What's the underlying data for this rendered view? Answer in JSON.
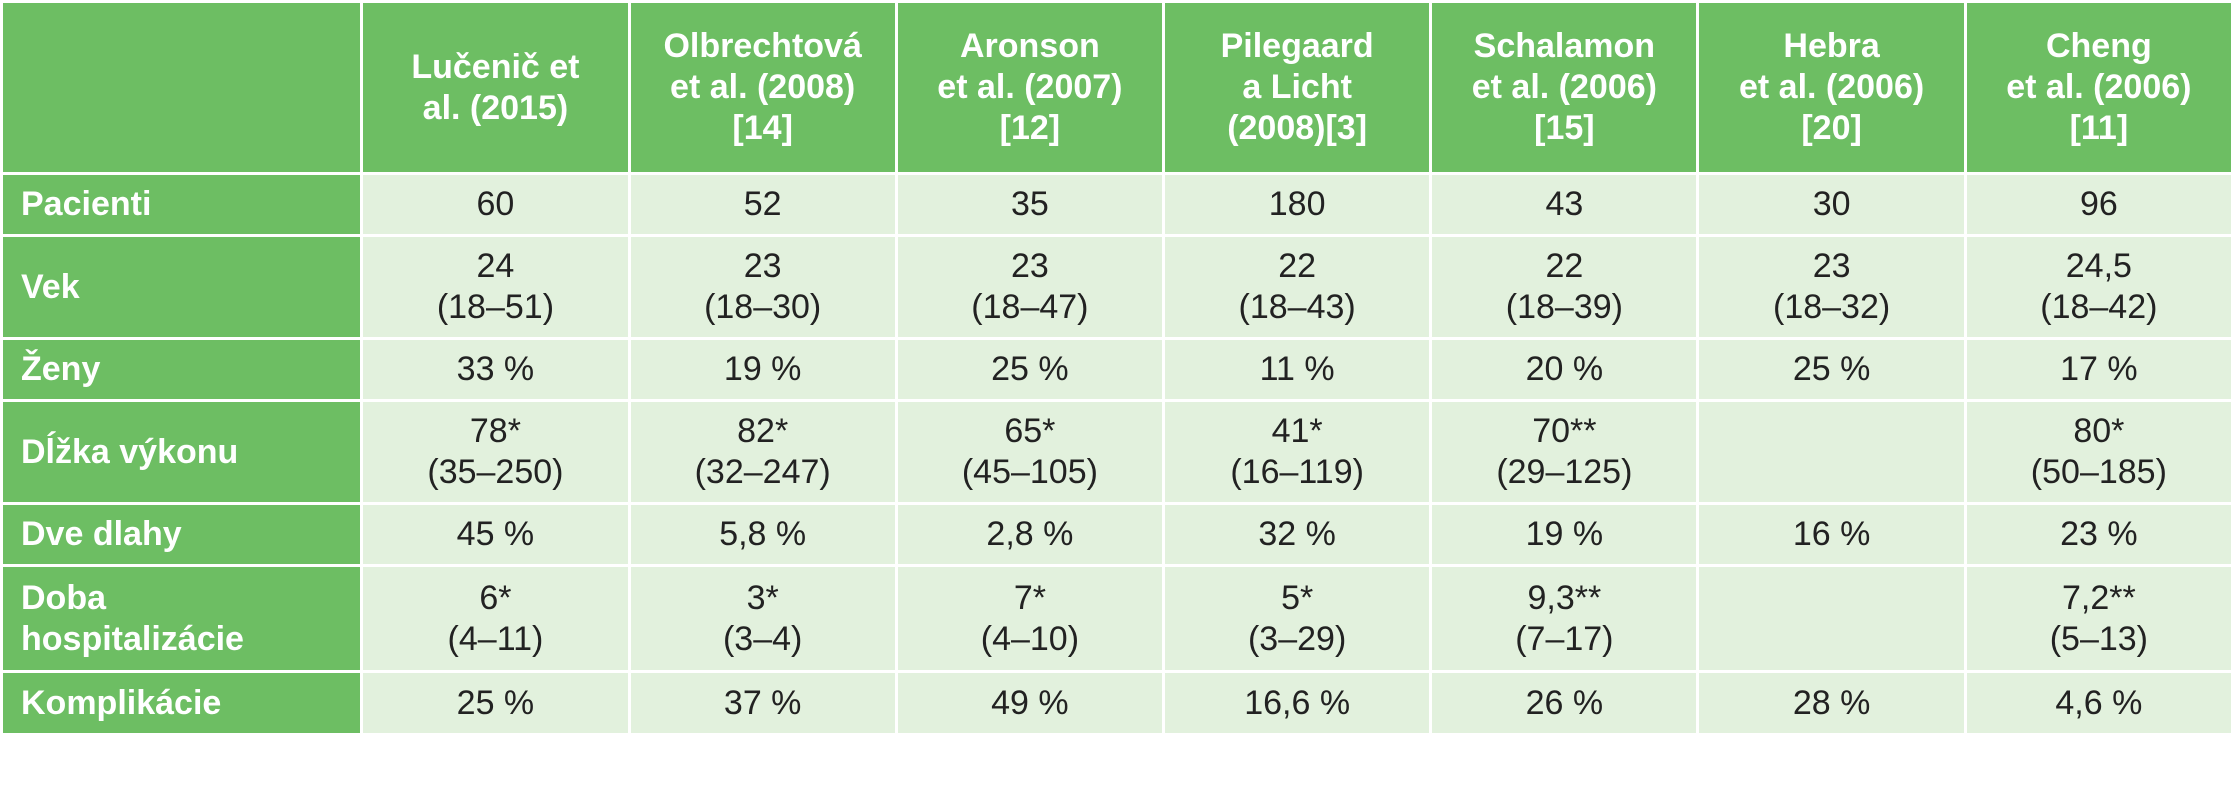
{
  "columns": [
    {
      "lines": [
        "Lučenič et",
        "al. (2015)"
      ]
    },
    {
      "lines": [
        "Olbrechtová",
        "et al. (2008)",
        "[14]"
      ]
    },
    {
      "lines": [
        "Aronson",
        "et al. (2007)",
        "[12]"
      ]
    },
    {
      "lines": [
        "Pilegaard",
        "a Licht",
        "(2008)[3]"
      ]
    },
    {
      "lines": [
        "Schalamon",
        "et al. (2006)",
        "[15]"
      ]
    },
    {
      "lines": [
        "Hebra",
        "et al. (2006)",
        "[20]"
      ]
    },
    {
      "lines": [
        "Cheng",
        "et al. (2006)",
        "[11]"
      ]
    }
  ],
  "rows": [
    {
      "label": [
        "Pacienti"
      ],
      "cells": [
        [
          "60"
        ],
        [
          "52"
        ],
        [
          "35"
        ],
        [
          "180"
        ],
        [
          "43"
        ],
        [
          "30"
        ],
        [
          "96"
        ]
      ]
    },
    {
      "label": [
        "Vek"
      ],
      "cells": [
        [
          "24",
          "(18–51)"
        ],
        [
          "23",
          "(18–30)"
        ],
        [
          "23",
          "(18–47)"
        ],
        [
          "22",
          "(18–43)"
        ],
        [
          "22",
          "(18–39)"
        ],
        [
          "23",
          "(18–32)"
        ],
        [
          "24,5",
          "(18–42)"
        ]
      ]
    },
    {
      "label": [
        "Ženy"
      ],
      "cells": [
        [
          "33 %"
        ],
        [
          "19 %"
        ],
        [
          "25 %"
        ],
        [
          "11 %"
        ],
        [
          "20 %"
        ],
        [
          "25 %"
        ],
        [
          "17 %"
        ]
      ]
    },
    {
      "label": [
        "Dĺžka výkonu"
      ],
      "cells": [
        [
          "78*",
          "(35–250)"
        ],
        [
          "82*",
          "(32–247)"
        ],
        [
          "65*",
          "(45–105)"
        ],
        [
          "41*",
          "(16–119)"
        ],
        [
          "70**",
          "(29–125)"
        ],
        [],
        [
          "80*",
          "(50–185)"
        ]
      ]
    },
    {
      "label": [
        "Dve dlahy"
      ],
      "cells": [
        [
          "45 %"
        ],
        [
          "5,8 %"
        ],
        [
          "2,8 %"
        ],
        [
          "32 %"
        ],
        [
          "19 %"
        ],
        [
          "16 %"
        ],
        [
          "23 %"
        ]
      ]
    },
    {
      "label": [
        "Doba",
        "hospitalizácie"
      ],
      "cells": [
        [
          "6*",
          "(4–11)"
        ],
        [
          "3*",
          "(3–4)"
        ],
        [
          "7*",
          "(4–10)"
        ],
        [
          "5*",
          "(3–29)"
        ],
        [
          "9,3**",
          "(7–17)"
        ],
        [],
        [
          "7,2**",
          "(5–13)"
        ]
      ]
    },
    {
      "label": [
        "Komplikácie"
      ],
      "cells": [
        [
          "25 %"
        ],
        [
          "37 %"
        ],
        [
          "49 %"
        ],
        [
          "16,6 %"
        ],
        [
          "26 %"
        ],
        [
          "28 %"
        ],
        [
          "4,6 %"
        ]
      ]
    }
  ]
}
